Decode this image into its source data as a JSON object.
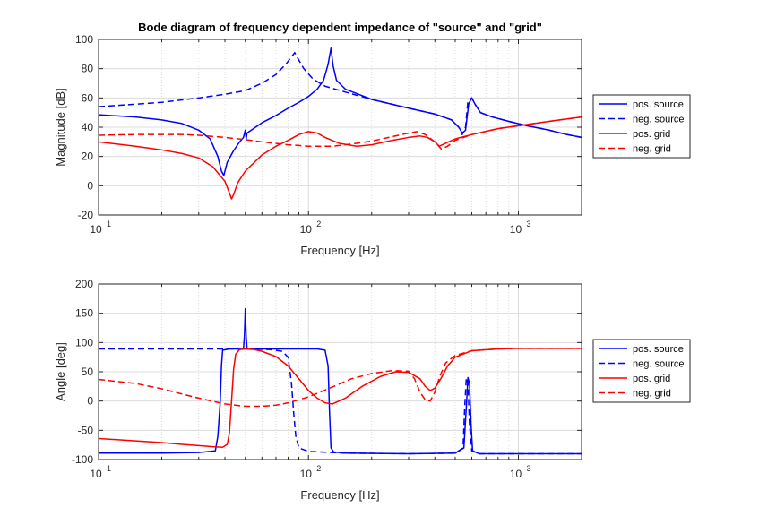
{
  "chart_data": [
    {
      "type": "line",
      "title": "Bode diagram of frequency dependent impedance of \"source\" and \"grid\"",
      "xlabel": "Frequency [Hz]",
      "ylabel": "Magnitude [dB]",
      "xscale": "log",
      "xlim": [
        10,
        2000
      ],
      "ylim": [
        -20,
        100
      ],
      "yticks": [
        -20,
        0,
        20,
        40,
        60,
        80,
        100
      ],
      "xtick_bases": [
        "10",
        "10",
        "10"
      ],
      "xtick_exps": [
        "1",
        "2",
        "3"
      ],
      "grid": true,
      "legend_position": "outside-right",
      "series": [
        {
          "name": "pos. source",
          "color": "#0000ff",
          "dash": "solid",
          "points": [
            [
              10,
              48.5
            ],
            [
              15,
              47
            ],
            [
              20,
              45
            ],
            [
              25,
              42.5
            ],
            [
              30,
              38
            ],
            [
              34,
              32
            ],
            [
              37,
              20
            ],
            [
              38.5,
              10
            ],
            [
              39.5,
              7
            ],
            [
              41,
              16
            ],
            [
              44,
              24
            ],
            [
              47,
              30
            ],
            [
              49,
              33
            ],
            [
              50,
              38
            ],
            [
              50.5,
              32
            ],
            [
              51,
              36
            ],
            [
              60,
              43
            ],
            [
              70,
              48
            ],
            [
              80,
              53
            ],
            [
              90,
              57
            ],
            [
              100,
              61
            ],
            [
              110,
              66
            ],
            [
              118,
              72
            ],
            [
              124,
              83
            ],
            [
              128,
              94
            ],
            [
              131,
              82
            ],
            [
              136,
              72
            ],
            [
              150,
              66
            ],
            [
              200,
              59
            ],
            [
              300,
              53
            ],
            [
              400,
              49
            ],
            [
              480,
              45
            ],
            [
              520,
              40
            ],
            [
              540,
              36
            ],
            [
              560,
              38
            ],
            [
              580,
              56
            ],
            [
              600,
              60
            ],
            [
              620,
              56
            ],
            [
              660,
              50
            ],
            [
              750,
              47
            ],
            [
              900,
              44
            ],
            [
              1100,
              41
            ],
            [
              1400,
              38
            ],
            [
              1700,
              35
            ],
            [
              2000,
              33
            ]
          ]
        },
        {
          "name": "neg. source",
          "color": "#0000ff",
          "dash": "dashed",
          "points": [
            [
              10,
              54
            ],
            [
              20,
              57
            ],
            [
              30,
              60
            ],
            [
              40,
              62.5
            ],
            [
              50,
              65
            ],
            [
              60,
              70
            ],
            [
              70,
              76
            ],
            [
              78,
              83
            ],
            [
              83,
              88
            ],
            [
              86,
              91
            ],
            [
              89,
              87
            ],
            [
              95,
              80
            ],
            [
              105,
              73
            ],
            [
              120,
              68
            ],
            [
              150,
              64
            ],
            [
              200,
              59
            ],
            [
              300,
              53
            ],
            [
              400,
              49
            ],
            [
              480,
              45
            ],
            [
              520,
              40
            ],
            [
              540,
              35
            ],
            [
              560,
              40
            ],
            [
              575,
              58
            ],
            [
              600,
              60
            ],
            [
              620,
              56
            ],
            [
              660,
              50
            ],
            [
              750,
              47
            ],
            [
              900,
              44
            ],
            [
              1100,
              41
            ],
            [
              1400,
              38
            ],
            [
              1700,
              35
            ],
            [
              2000,
              33
            ]
          ]
        },
        {
          "name": "pos. grid",
          "color": "#ff0000",
          "dash": "solid",
          "points": [
            [
              10,
              30
            ],
            [
              15,
              27
            ],
            [
              20,
              24.5
            ],
            [
              25,
              22
            ],
            [
              30,
              19
            ],
            [
              35,
              13
            ],
            [
              40,
              3
            ],
            [
              42,
              -5
            ],
            [
              43,
              -9
            ],
            [
              44,
              -6
            ],
            [
              46,
              2
            ],
            [
              50,
              10
            ],
            [
              60,
              21
            ],
            [
              70,
              27
            ],
            [
              80,
              31
            ],
            [
              90,
              35
            ],
            [
              100,
              37
            ],
            [
              110,
              36
            ],
            [
              120,
              33
            ],
            [
              140,
              29
            ],
            [
              170,
              27
            ],
            [
              200,
              28
            ],
            [
              250,
              31
            ],
            [
              300,
              33
            ],
            [
              340,
              34
            ],
            [
              370,
              33
            ],
            [
              400,
              30
            ],
            [
              420,
              27
            ],
            [
              450,
              29
            ],
            [
              500,
              32
            ],
            [
              600,
              35
            ],
            [
              800,
              39
            ],
            [
              1000,
              41
            ],
            [
              1400,
              44
            ],
            [
              2000,
              47
            ]
          ]
        },
        {
          "name": "neg. grid",
          "color": "#ff0000",
          "dash": "dashed",
          "points": [
            [
              10,
              34.5
            ],
            [
              15,
              35
            ],
            [
              20,
              35
            ],
            [
              25,
              35
            ],
            [
              30,
              34.5
            ],
            [
              40,
              33
            ],
            [
              50,
              31.5
            ],
            [
              60,
              30
            ],
            [
              80,
              28
            ],
            [
              100,
              27
            ],
            [
              130,
              27
            ],
            [
              160,
              28.5
            ],
            [
              200,
              30.5
            ],
            [
              250,
              33.5
            ],
            [
              300,
              36
            ],
            [
              330,
              37
            ],
            [
              360,
              35
            ],
            [
              400,
              30
            ],
            [
              430,
              25
            ],
            [
              460,
              27
            ],
            [
              500,
              31
            ],
            [
              600,
              35
            ],
            [
              800,
              39
            ],
            [
              1000,
              41
            ],
            [
              1400,
              44
            ],
            [
              2000,
              47
            ]
          ]
        }
      ]
    },
    {
      "type": "line",
      "title": "",
      "xlabel": "Frequency [Hz]",
      "ylabel": "Angle [deg]",
      "xscale": "log",
      "xlim": [
        10,
        2000
      ],
      "ylim": [
        -100,
        200
      ],
      "yticks": [
        -100,
        -50,
        0,
        50,
        100,
        150,
        200
      ],
      "xtick_bases": [
        "10",
        "10",
        "10"
      ],
      "xtick_exps": [
        "1",
        "2",
        "3"
      ],
      "grid": true,
      "legend_position": "outside-right",
      "series": [
        {
          "name": "pos. source",
          "color": "#0000ff",
          "dash": "solid",
          "points": [
            [
              10,
              -89
            ],
            [
              20,
              -89
            ],
            [
              30,
              -88
            ],
            [
              36,
              -85
            ],
            [
              37,
              -60
            ],
            [
              38,
              0
            ],
            [
              38.5,
              60
            ],
            [
              39,
              87
            ],
            [
              42,
              89
            ],
            [
              49,
              89
            ],
            [
              49.5,
              110
            ],
            [
              50,
              158
            ],
            [
              50.5,
              110
            ],
            [
              51,
              89
            ],
            [
              80,
              89
            ],
            [
              110,
              89
            ],
            [
              120,
              87
            ],
            [
              124,
              60
            ],
            [
              126,
              -20
            ],
            [
              128,
              -80
            ],
            [
              132,
              -87
            ],
            [
              150,
              -89
            ],
            [
              300,
              -90
            ],
            [
              500,
              -89
            ],
            [
              550,
              -80
            ],
            [
              565,
              -10
            ],
            [
              575,
              40
            ],
            [
              585,
              30
            ],
            [
              595,
              -40
            ],
            [
              605,
              -85
            ],
            [
              650,
              -90
            ],
            [
              1000,
              -90
            ],
            [
              2000,
              -90
            ]
          ]
        },
        {
          "name": "neg. source",
          "color": "#0000ff",
          "dash": "dashed",
          "points": [
            [
              10,
              89
            ],
            [
              30,
              89
            ],
            [
              50,
              89
            ],
            [
              65,
              88
            ],
            [
              75,
              85
            ],
            [
              80,
              75
            ],
            [
              83,
              30
            ],
            [
              85,
              -20
            ],
            [
              87,
              -60
            ],
            [
              90,
              -80
            ],
            [
              100,
              -86
            ],
            [
              150,
              -89
            ],
            [
              300,
              -90
            ],
            [
              500,
              -89
            ],
            [
              545,
              -80
            ],
            [
              555,
              -10
            ],
            [
              565,
              40
            ],
            [
              575,
              30
            ],
            [
              585,
              -40
            ],
            [
              600,
              -85
            ],
            [
              650,
              -90
            ],
            [
              1000,
              -90
            ],
            [
              2000,
              -90
            ]
          ]
        },
        {
          "name": "pos. grid",
          "color": "#ff0000",
          "dash": "solid",
          "points": [
            [
              10,
              -64
            ],
            [
              15,
              -68
            ],
            [
              20,
              -71
            ],
            [
              25,
              -74
            ],
            [
              30,
              -76
            ],
            [
              35,
              -78
            ],
            [
              39,
              -79
            ],
            [
              41,
              -74
            ],
            [
              42,
              -55
            ],
            [
              43,
              0
            ],
            [
              44,
              55
            ],
            [
              45,
              80
            ],
            [
              47,
              88
            ],
            [
              50,
              89
            ],
            [
              55,
              88
            ],
            [
              60,
              85
            ],
            [
              70,
              76
            ],
            [
              80,
              60
            ],
            [
              90,
              38
            ],
            [
              100,
              18
            ],
            [
              110,
              5
            ],
            [
              120,
              -3
            ],
            [
              130,
              -5
            ],
            [
              150,
              5
            ],
            [
              180,
              25
            ],
            [
              220,
              42
            ],
            [
              260,
              50
            ],
            [
              300,
              49
            ],
            [
              340,
              38
            ],
            [
              360,
              25
            ],
            [
              380,
              18
            ],
            [
              400,
              22
            ],
            [
              430,
              40
            ],
            [
              460,
              60
            ],
            [
              500,
              75
            ],
            [
              600,
              86
            ],
            [
              800,
              89
            ],
            [
              1000,
              90
            ],
            [
              2000,
              90
            ]
          ]
        },
        {
          "name": "neg. grid",
          "color": "#ff0000",
          "dash": "dashed",
          "points": [
            [
              10,
              37
            ],
            [
              15,
              30
            ],
            [
              20,
              21
            ],
            [
              25,
              12
            ],
            [
              30,
              5
            ],
            [
              40,
              -5
            ],
            [
              50,
              -9
            ],
            [
              60,
              -9
            ],
            [
              70,
              -7
            ],
            [
              80,
              -3
            ],
            [
              100,
              7
            ],
            [
              130,
              24
            ],
            [
              160,
              38
            ],
            [
              200,
              47
            ],
            [
              250,
              52
            ],
            [
              300,
              51
            ],
            [
              320,
              38
            ],
            [
              340,
              15
            ],
            [
              360,
              2
            ],
            [
              380,
              0
            ],
            [
              400,
              15
            ],
            [
              420,
              40
            ],
            [
              450,
              65
            ],
            [
              500,
              78
            ],
            [
              600,
              86
            ],
            [
              800,
              89
            ],
            [
              1000,
              90
            ],
            [
              2000,
              90
            ]
          ]
        }
      ]
    }
  ]
}
